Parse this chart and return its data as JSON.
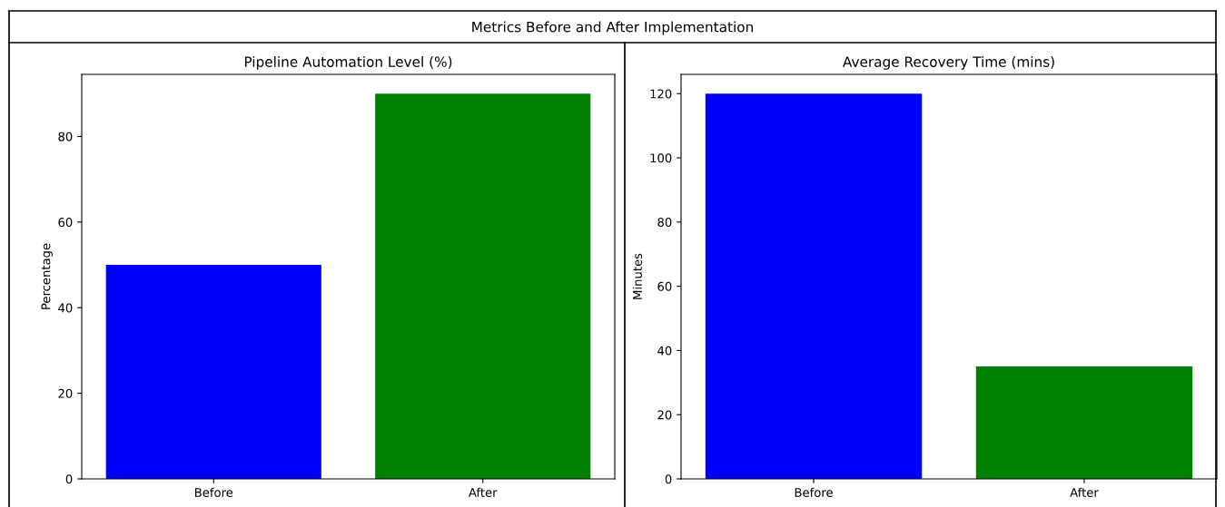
{
  "chart_data": [
    {
      "type": "bar",
      "title": "Pipeline Automation Level (%)",
      "ylabel": "Percentage",
      "categories": [
        "Before",
        "After"
      ],
      "values": [
        50,
        90
      ],
      "colors": [
        "#0000ff",
        "#008000"
      ],
      "ylim": [
        0,
        94.5
      ],
      "yticks": [
        0,
        20,
        40,
        60,
        80
      ],
      "annotations": [
        "Metrics Before and After Implementation"
      ]
    },
    {
      "type": "bar",
      "title": "Average Recovery Time (mins)",
      "ylabel": "Minutes",
      "categories": [
        "Before",
        "After"
      ],
      "values": [
        120,
        35
      ],
      "colors": [
        "#0000ff",
        "#008000"
      ],
      "ylim": [
        0,
        126
      ],
      "yticks": [
        0,
        20,
        40,
        60,
        80,
        100,
        120
      ]
    }
  ]
}
